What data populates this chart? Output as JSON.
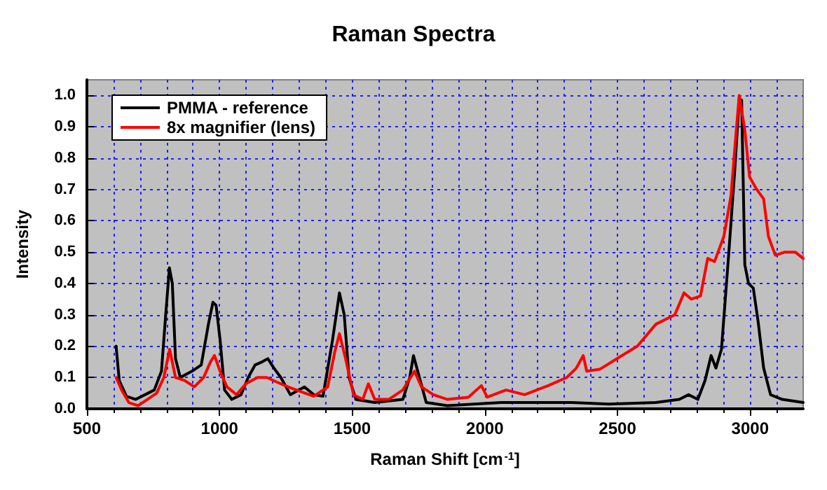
{
  "chart_data": {
    "type": "line",
    "title": "Raman Spectra",
    "xlabel": "Raman Shift [cm$^{-1}$]",
    "ylabel": "Intensity",
    "xlim": [
      500,
      3200
    ],
    "xticks": [
      500,
      1000,
      1500,
      2000,
      2500,
      3000
    ],
    "ylim": [
      0,
      1.05
    ],
    "yticks": [
      {
        "value": 0,
        "label": "0.0"
      },
      {
        "value": 0.1,
        "label": "0.1"
      },
      {
        "value": 0.2,
        "label": "0.2"
      },
      {
        "value": 0.3,
        "label": "0.3"
      },
      {
        "value": 0.4,
        "label": "0.4"
      },
      {
        "value": 0.5,
        "label": "0.5"
      },
      {
        "value": 0.6,
        "label": "0.6"
      },
      {
        "value": 0.7,
        "label": "0.7"
      },
      {
        "value": 0.8,
        "label": "0.8"
      },
      {
        "value": 0.9,
        "label": "0.9"
      },
      {
        "value": 1.0,
        "label": "1.0"
      }
    ],
    "grid": true,
    "legend": "top left",
    "marker": "none",
    "line_style": "solid",
    "series": [
      {
        "name": "PMMA - reference",
        "color": "#000000",
        "x": [
          610,
          622,
          649,
          684,
          719,
          754,
          781,
          798,
          811,
          822,
          834,
          852,
          896,
          931,
          958,
          975,
          987,
          1002,
          1019,
          1046,
          1081,
          1108,
          1134,
          1161,
          1182,
          1205,
          1231,
          1267,
          1320,
          1355,
          1390,
          1426,
          1452,
          1470,
          1488,
          1514,
          1585,
          1691,
          1717,
          1731,
          1747,
          1779,
          1859,
          2062,
          2327,
          2468,
          2645,
          2733,
          2768,
          2803,
          2830,
          2853,
          2871,
          2892,
          2919,
          2942,
          2959,
          2968,
          2980,
          2994,
          3012,
          3030,
          3051,
          3077,
          3121,
          3200
        ],
        "values": [
          0.2,
          0.09,
          0.04,
          0.03,
          0.045,
          0.06,
          0.12,
          0.31,
          0.45,
          0.4,
          0.16,
          0.1,
          0.12,
          0.14,
          0.27,
          0.34,
          0.33,
          0.22,
          0.06,
          0.03,
          0.045,
          0.1,
          0.14,
          0.15,
          0.16,
          0.13,
          0.1,
          0.045,
          0.07,
          0.045,
          0.04,
          0.22,
          0.37,
          0.3,
          0.1,
          0.03,
          0.02,
          0.03,
          0.1,
          0.17,
          0.12,
          0.02,
          0.01,
          0.02,
          0.02,
          0.015,
          0.02,
          0.03,
          0.045,
          0.03,
          0.09,
          0.17,
          0.13,
          0.19,
          0.49,
          0.76,
          0.99,
          0.985,
          0.46,
          0.4,
          0.385,
          0.28,
          0.13,
          0.045,
          0.03,
          0.02
        ]
      },
      {
        "name": "8x magnifier (lens)",
        "color": "#ff0000",
        "x": [
          610,
          631,
          658,
          693,
          728,
          763,
          790,
          812,
          834,
          869,
          905,
          940,
          966,
          981,
          1002,
          1028,
          1064,
          1099,
          1143,
          1178,
          1214,
          1258,
          1302,
          1355,
          1408,
          1434,
          1452,
          1475,
          1505,
          1540,
          1561,
          1585,
          1638,
          1691,
          1735,
          1761,
          1806,
          1859,
          1938,
          1987,
          2009,
          2080,
          2150,
          2239,
          2309,
          2345,
          2371,
          2384,
          2433,
          2504,
          2575,
          2645,
          2716,
          2751,
          2778,
          2813,
          2840,
          2866,
          2901,
          2928,
          2945,
          2959,
          2980,
          2998,
          3025,
          3051,
          3069,
          3095,
          3131,
          3170,
          3200
        ],
        "values": [
          0.1,
          0.06,
          0.02,
          0.01,
          0.03,
          0.05,
          0.1,
          0.19,
          0.1,
          0.09,
          0.07,
          0.1,
          0.15,
          0.17,
          0.12,
          0.07,
          0.045,
          0.08,
          0.1,
          0.1,
          0.086,
          0.07,
          0.056,
          0.04,
          0.07,
          0.18,
          0.24,
          0.16,
          0.045,
          0.03,
          0.08,
          0.03,
          0.03,
          0.06,
          0.12,
          0.07,
          0.045,
          0.03,
          0.037,
          0.074,
          0.037,
          0.06,
          0.045,
          0.074,
          0.1,
          0.13,
          0.17,
          0.12,
          0.126,
          0.163,
          0.2,
          0.27,
          0.3,
          0.37,
          0.35,
          0.36,
          0.48,
          0.47,
          0.55,
          0.68,
          0.86,
          1.0,
          0.89,
          0.74,
          0.7,
          0.67,
          0.55,
          0.49,
          0.5,
          0.5,
          0.48
        ]
      }
    ]
  }
}
